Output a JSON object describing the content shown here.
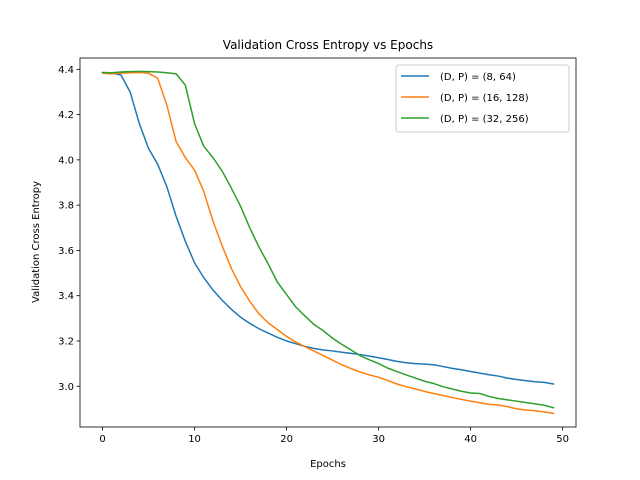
{
  "chart_data": {
    "type": "line",
    "title": "Validation Cross Entropy vs Epochs",
    "xlabel": "Epochs",
    "ylabel": "Validation Cross Entropy",
    "xlim": [
      -2.45,
      51.45
    ],
    "ylim": [
      2.82,
      4.45
    ],
    "xticks": [
      0,
      10,
      20,
      30,
      40,
      50
    ],
    "yticks": [
      3.0,
      3.2,
      3.4,
      3.6,
      3.8,
      4.0,
      4.2,
      4.4
    ],
    "ytick_labels": [
      "3.0",
      "3.2",
      "3.4",
      "3.6",
      "3.8",
      "4.0",
      "4.2",
      "4.4"
    ],
    "grid": false,
    "legend_position": "top-right",
    "x": [
      0,
      1,
      2,
      3,
      4,
      5,
      6,
      7,
      8,
      9,
      10,
      11,
      12,
      13,
      14,
      15,
      16,
      17,
      18,
      19,
      20,
      21,
      22,
      23,
      24,
      25,
      26,
      27,
      28,
      29,
      30,
      31,
      32,
      33,
      34,
      35,
      36,
      37,
      38,
      39,
      40,
      41,
      42,
      43,
      44,
      45,
      46,
      47,
      48,
      49
    ],
    "series": [
      {
        "name": "(D, P) = (8, 64)",
        "color": "#1f77b4",
        "values": [
          4.385,
          4.383,
          4.375,
          4.3,
          4.16,
          4.05,
          3.98,
          3.88,
          3.75,
          3.64,
          3.545,
          3.48,
          3.425,
          3.38,
          3.34,
          3.305,
          3.278,
          3.254,
          3.235,
          3.216,
          3.2,
          3.188,
          3.176,
          3.167,
          3.16,
          3.156,
          3.15,
          3.145,
          3.14,
          3.133,
          3.126,
          3.118,
          3.11,
          3.104,
          3.1,
          3.098,
          3.095,
          3.087,
          3.079,
          3.073,
          3.065,
          3.058,
          3.051,
          3.045,
          3.036,
          3.03,
          3.025,
          3.02,
          3.017,
          3.01
        ]
      },
      {
        "name": "(D, P) = (16, 128)",
        "color": "#ff7f0e",
        "values": [
          4.383,
          4.38,
          4.383,
          4.385,
          4.386,
          4.383,
          4.36,
          4.24,
          4.08,
          4.01,
          3.955,
          3.86,
          3.73,
          3.62,
          3.52,
          3.44,
          3.375,
          3.32,
          3.28,
          3.25,
          3.22,
          3.195,
          3.175,
          3.155,
          3.135,
          3.115,
          3.095,
          3.078,
          3.063,
          3.05,
          3.04,
          3.025,
          3.01,
          2.998,
          2.988,
          2.977,
          2.968,
          2.959,
          2.95,
          2.942,
          2.934,
          2.927,
          2.92,
          2.917,
          2.91,
          2.9,
          2.895,
          2.892,
          2.887,
          2.88
        ]
      },
      {
        "name": "(D, P) = (32, 256)",
        "color": "#2ca02c",
        "values": [
          4.386,
          4.385,
          4.388,
          4.39,
          4.391,
          4.39,
          4.388,
          4.385,
          4.38,
          4.33,
          4.16,
          4.06,
          4.01,
          3.95,
          3.875,
          3.795,
          3.7,
          3.615,
          3.54,
          3.46,
          3.405,
          3.35,
          3.31,
          3.272,
          3.245,
          3.212,
          3.185,
          3.16,
          3.135,
          3.117,
          3.1,
          3.08,
          3.065,
          3.05,
          3.036,
          3.022,
          3.012,
          2.998,
          2.988,
          2.978,
          2.97,
          2.968,
          2.955,
          2.946,
          2.94,
          2.934,
          2.928,
          2.922,
          2.916,
          2.905
        ]
      }
    ]
  }
}
